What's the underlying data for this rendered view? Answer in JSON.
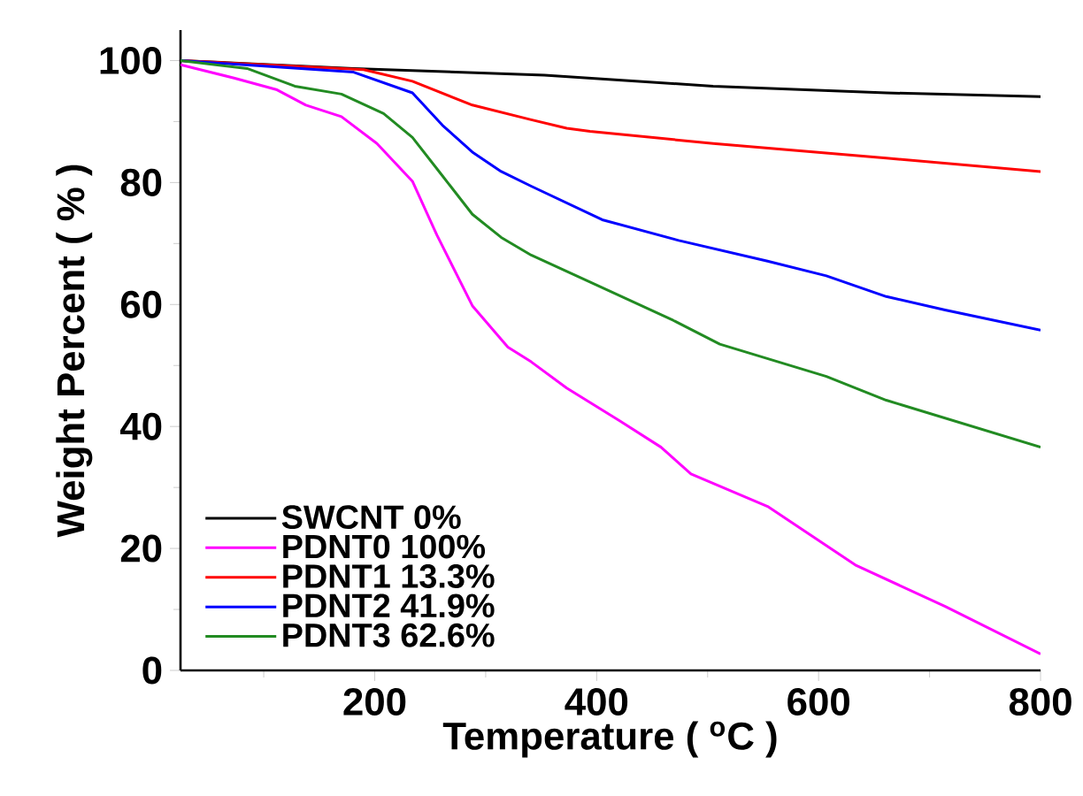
{
  "chart_data": {
    "type": "line",
    "xlabel": "Temperature ( $^{o}$C )",
    "ylabel": "Weight Percent ( % )",
    "xlim": [
      25,
      800
    ],
    "ylim": [
      0,
      105
    ],
    "xticks": [
      {
        "value": 100,
        "label": null
      },
      200,
      {
        "value": 300,
        "label": null
      },
      400,
      {
        "value": 500,
        "label": null
      },
      600,
      {
        "value": 700,
        "label": null
      },
      800
    ],
    "yticks": [
      0,
      {
        "value": 10,
        "label": null
      },
      20,
      {
        "value": 30,
        "label": null
      },
      40,
      {
        "value": 50,
        "label": null
      },
      60,
      {
        "value": 70,
        "label": null
      },
      80,
      {
        "value": 90,
        "label": null
      },
      100
    ],
    "legend": "bottom left",
    "grid": false,
    "marker": "none",
    "line_style": "solid",
    "series": [
      {
        "name": "SWCNT 0%",
        "color": "#000000",
        "x": [
          25,
          181,
          353,
          505,
          661,
          800
        ],
        "values": [
          100,
          98.7,
          97.6,
          95.8,
          94.7,
          94.1
        ]
      },
      {
        "name": "PDNT0 100%",
        "color": "#ff00ff",
        "x": [
          25,
          74,
          112,
          138,
          170,
          202,
          234,
          256,
          288,
          320,
          341,
          373,
          421,
          458,
          485,
          554,
          634,
          714,
          800
        ],
        "values": [
          99.3,
          97.1,
          95.2,
          92.7,
          90.8,
          86.4,
          80.2,
          71.4,
          59.8,
          53.0,
          50.6,
          46.3,
          40.9,
          36.6,
          32.2,
          26.9,
          17.2,
          10.5,
          2.7
        ]
      },
      {
        "name": "PDNT1 13.3%",
        "color": "#ff0000",
        "x": [
          25,
          190,
          234,
          288,
          341,
          373,
          394,
          505,
          661,
          800
        ],
        "values": [
          100,
          98.5,
          96.6,
          92.7,
          90.3,
          88.9,
          88.4,
          86.4,
          84.0,
          81.8
        ]
      },
      {
        "name": "PDNT2 41.9%",
        "color": "#0000ff",
        "x": [
          25,
          181,
          234,
          261,
          288,
          314,
          341,
          405,
          474,
          554,
          607,
          661,
          714,
          800
        ],
        "values": [
          100,
          98.1,
          94.7,
          89.4,
          85.0,
          81.8,
          79.4,
          73.9,
          70.5,
          67.1,
          64.7,
          61.3,
          59.1,
          55.8
        ]
      },
      {
        "name": "PDNT3 62.6%",
        "color": "#228b22",
        "x": [
          25,
          85,
          128,
          170,
          208,
          234,
          261,
          288,
          314,
          341,
          394,
          469,
          511,
          607,
          661,
          800
        ],
        "values": [
          100,
          98.7,
          95.8,
          94.5,
          91.3,
          87.4,
          81.1,
          74.8,
          71.0,
          68.1,
          63.7,
          57.4,
          53.5,
          48.2,
          44.3,
          36.6
        ]
      }
    ]
  }
}
